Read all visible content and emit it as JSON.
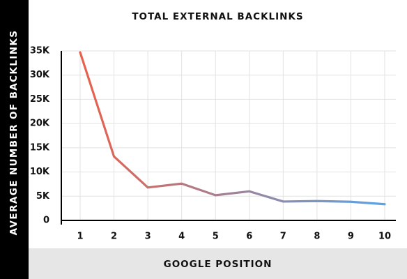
{
  "chart_data": {
    "type": "line",
    "title": "TOTAL EXTERNAL BACKLINKS",
    "xlabel": "GOOGLE POSITION",
    "ylabel": "AVERAGE NUMBER OF BACKLINKS",
    "x": [
      1,
      2,
      3,
      4,
      5,
      6,
      7,
      8,
      9,
      10
    ],
    "x_tick_labels": [
      "1",
      "2",
      "3",
      "4",
      "5",
      "6",
      "7",
      "8",
      "9",
      "10"
    ],
    "y_ticks": [
      0,
      5000,
      10000,
      15000,
      20000,
      25000,
      30000,
      35000
    ],
    "y_tick_labels": [
      "0",
      "5K",
      "10K",
      "15K",
      "20K",
      "25K",
      "30K",
      "35K"
    ],
    "ylim": [
      0,
      35000
    ],
    "series": [
      {
        "values": [
          34700,
          13200,
          6800,
          7600,
          5200,
          6000,
          3900,
          4000,
          3850,
          3350
        ]
      }
    ],
    "grid": true,
    "legend": "none",
    "colors": {
      "line_start": "#e8614a",
      "line_end": "#5aa3e6",
      "grid": "#e2e2e2",
      "axis": "#000000",
      "ylabel_band": "#000000",
      "xlabel_band": "#e6e6e6"
    }
  }
}
